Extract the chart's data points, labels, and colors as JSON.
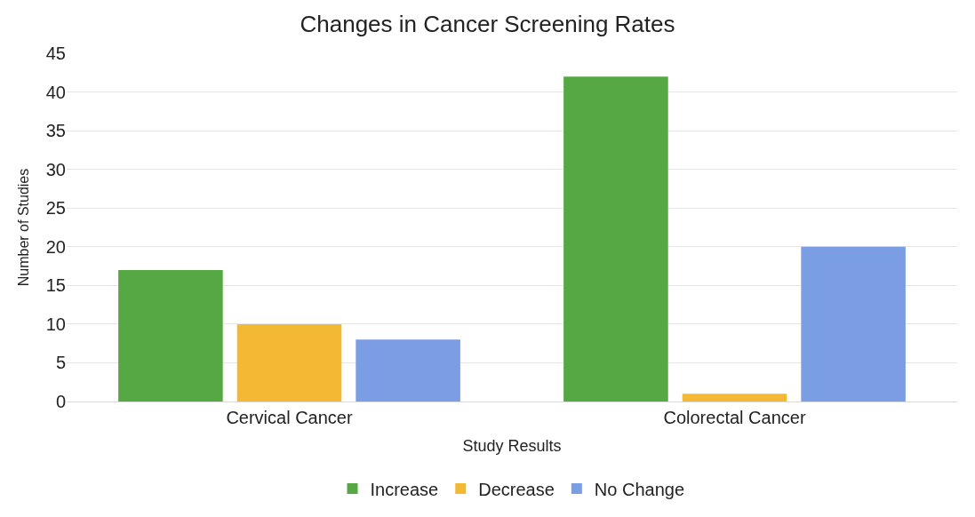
{
  "chart_data": {
    "type": "bar",
    "title": "Changes in Cancer Screening Rates",
    "xlabel": "Study Results",
    "ylabel": "Number of Studies",
    "categories": [
      "Cervical Cancer",
      "Colorectal Cancer"
    ],
    "series": [
      {
        "name": "Increase",
        "color": "#56a845",
        "values": [
          17,
          42
        ]
      },
      {
        "name": "Decrease",
        "color": "#f4b933",
        "values": [
          10,
          1
        ]
      },
      {
        "name": "No Change",
        "color": "#7b9de4",
        "values": [
          8,
          20
        ]
      }
    ],
    "ylim": [
      0,
      45
    ],
    "yticks": [
      0,
      5,
      10,
      15,
      20,
      25,
      30,
      35,
      40,
      45
    ],
    "grid": "y",
    "legend": "bottom"
  }
}
